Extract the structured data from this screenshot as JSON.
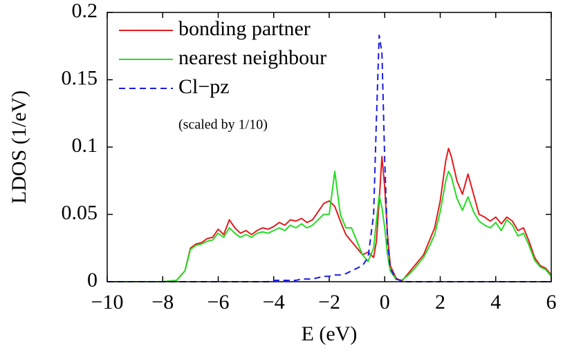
{
  "chart_data": {
    "type": "line",
    "x_label": "E (eV)",
    "y_label": "LDOS (1/eV)",
    "annotation": "(scaled by 1/10)",
    "xlim": [
      -10,
      6
    ],
    "ylim": [
      0,
      0.2
    ],
    "xticks": [
      {
        "value": -10,
        "label": "−10"
      },
      {
        "value": -8,
        "label": "−8"
      },
      {
        "value": -6,
        "label": "−6"
      },
      {
        "value": -4,
        "label": "−4"
      },
      {
        "value": -2,
        "label": "−2"
      },
      0,
      2,
      4,
      6
    ],
    "yticks": [
      0,
      0.05,
      0.1,
      0.15,
      0.2
    ],
    "legend": "upper left",
    "x": [
      -10,
      -8,
      -7.5,
      -7.2,
      -7,
      -6.8,
      -6.6,
      -6.4,
      -6.2,
      -6,
      -5.8,
      -5.6,
      -5.4,
      -5.2,
      -5,
      -4.8,
      -4.6,
      -4.4,
      -4.2,
      -4,
      -3.8,
      -3.6,
      -3.4,
      -3.2,
      -3,
      -2.8,
      -2.6,
      -2.4,
      -2.2,
      -2,
      -1.8,
      -1.6,
      -1.4,
      -1.2,
      -1,
      -0.8,
      -0.6,
      -0.4,
      -0.3,
      -0.2,
      -0.1,
      0,
      0.1,
      0.2,
      0.4,
      0.6,
      0.8,
      1,
      1.2,
      1.4,
      1.6,
      1.8,
      2,
      2.2,
      2.3,
      2.4,
      2.6,
      2.8,
      3,
      3.2,
      3.4,
      3.6,
      3.8,
      4,
      4.2,
      4.4,
      4.6,
      4.8,
      5,
      5.2,
      5.4,
      5.6,
      5.8,
      6
    ],
    "series": [
      {
        "name": "bonding partner",
        "color": "#e41a1c",
        "dash": false,
        "values": [
          0,
          0,
          0.001,
          0.008,
          0.025,
          0.028,
          0.029,
          0.032,
          0.033,
          0.039,
          0.035,
          0.046,
          0.04,
          0.036,
          0.038,
          0.035,
          0.038,
          0.04,
          0.039,
          0.041,
          0.044,
          0.042,
          0.046,
          0.045,
          0.047,
          0.044,
          0.046,
          0.052,
          0.058,
          0.06,
          0.056,
          0.045,
          0.035,
          0.03,
          0.025,
          0.02,
          0.022,
          0.018,
          0.03,
          0.06,
          0.093,
          0.07,
          0.035,
          0.012,
          0.003,
          0,
          0.005,
          0.01,
          0.015,
          0.02,
          0.03,
          0.04,
          0.06,
          0.09,
          0.099,
          0.093,
          0.075,
          0.065,
          0.08,
          0.065,
          0.05,
          0.048,
          0.045,
          0.048,
          0.043,
          0.048,
          0.045,
          0.038,
          0.04,
          0.03,
          0.018,
          0.012,
          0.01,
          0.005
        ]
      },
      {
        "name": "nearest neighbour",
        "color": "#22dd22",
        "dash": false,
        "values": [
          0,
          0,
          0.001,
          0.008,
          0.024,
          0.027,
          0.028,
          0.03,
          0.031,
          0.036,
          0.033,
          0.04,
          0.036,
          0.033,
          0.035,
          0.033,
          0.036,
          0.037,
          0.036,
          0.038,
          0.04,
          0.038,
          0.042,
          0.04,
          0.043,
          0.04,
          0.042,
          0.046,
          0.05,
          0.05,
          0.082,
          0.05,
          0.04,
          0.04,
          0.03,
          0.02,
          0.015,
          0.025,
          0.045,
          0.064,
          0.055,
          0.04,
          0.02,
          0.008,
          0.002,
          0.001,
          0.004,
          0.008,
          0.013,
          0.018,
          0.026,
          0.035,
          0.052,
          0.075,
          0.082,
          0.078,
          0.062,
          0.053,
          0.063,
          0.052,
          0.045,
          0.042,
          0.04,
          0.044,
          0.038,
          0.046,
          0.042,
          0.034,
          0.036,
          0.027,
          0.016,
          0.011,
          0.009,
          0.004
        ]
      },
      {
        "name": "Cl−pz",
        "color": "#1a1ae6",
        "dash": true,
        "values": [
          0,
          0,
          0,
          0,
          0,
          0,
          0,
          0,
          0,
          0,
          0,
          0,
          0,
          0,
          0,
          0,
          0,
          0,
          0,
          0.001,
          0.001,
          0.001,
          0.001,
          0.001,
          0.002,
          0.002,
          0.002,
          0.003,
          0.004,
          0.004,
          0.005,
          0.005,
          0.006,
          0.008,
          0.01,
          0.012,
          0.018,
          0.05,
          0.12,
          0.183,
          0.17,
          0.09,
          0.03,
          0.01,
          0.002,
          0.001,
          0,
          0,
          0,
          0,
          0,
          0,
          0,
          0,
          0,
          0,
          0,
          0,
          0,
          0,
          0,
          0,
          0,
          0,
          0,
          0,
          0,
          0,
          0,
          0,
          0,
          0,
          0,
          0
        ]
      }
    ]
  }
}
